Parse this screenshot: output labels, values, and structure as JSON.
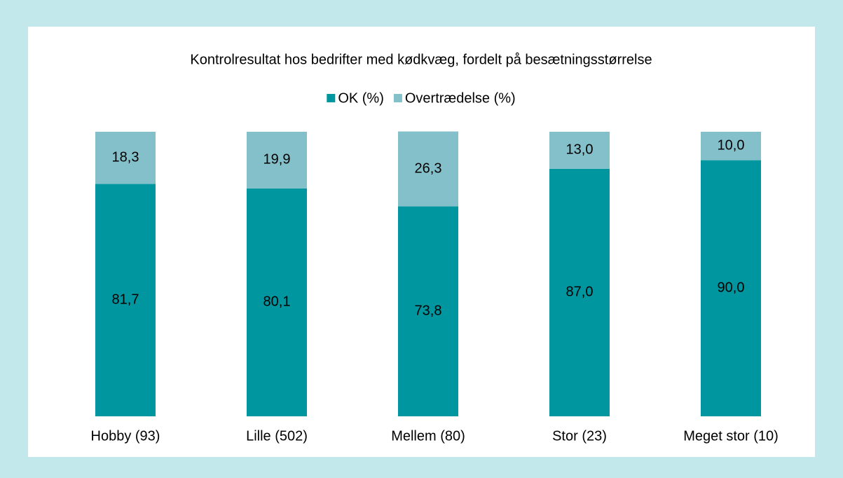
{
  "chart_data": {
    "type": "stacked_bar",
    "title": "Kontrolresultat hos bedrifter med kødkvæg, fordelt på besætningsstørrelse",
    "categories": [
      "Hobby (93)",
      "Lille (502)",
      "Mellem (80)",
      "Stor (23)",
      "Meget stor (10)"
    ],
    "series": [
      {
        "name": "OK (%)",
        "color": "#0096a0",
        "values": [
          81.7,
          80.1,
          73.8,
          87.0,
          90.0
        ],
        "value_labels": [
          "81,7",
          "80,1",
          "73,8",
          "87,0",
          "90,0"
        ]
      },
      {
        "name": "Overtrædelse (%)",
        "color": "#84c0ca",
        "values": [
          18.3,
          19.9,
          26.3,
          13.0,
          10.0
        ],
        "value_labels": [
          "18,3",
          "19,9",
          "26,3",
          "13,0",
          "10,0"
        ]
      }
    ],
    "ylim": [
      0,
      100
    ],
    "legend": "top"
  }
}
